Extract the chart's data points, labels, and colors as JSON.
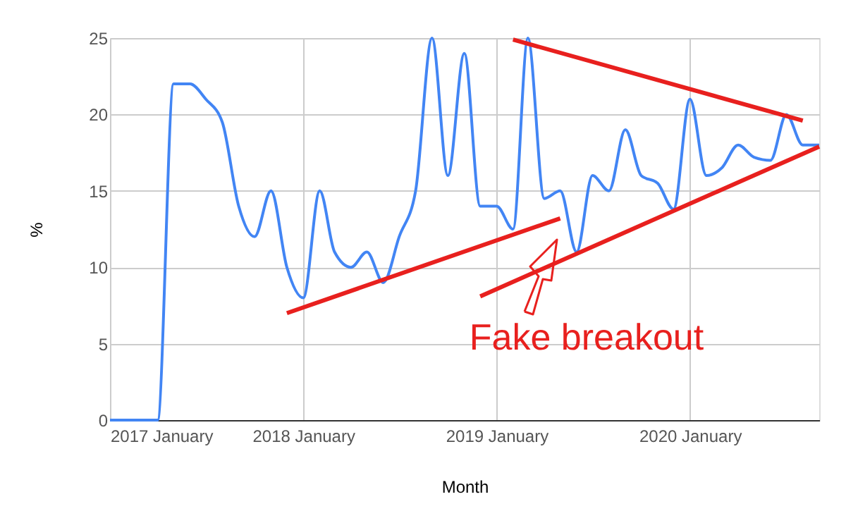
{
  "chart_data": {
    "type": "line",
    "xlabel": "Month",
    "ylabel": "%",
    "x": [
      "2017-01",
      "2017-02",
      "2017-03",
      "2017-04",
      "2017-05",
      "2017-06",
      "2017-07",
      "2017-08",
      "2017-09",
      "2017-10",
      "2017-11",
      "2017-12",
      "2018-01",
      "2018-02",
      "2018-03",
      "2018-04",
      "2018-05",
      "2018-06",
      "2018-07",
      "2018-08",
      "2018-09",
      "2018-10",
      "2018-11",
      "2018-12",
      "2019-01",
      "2019-02",
      "2019-03",
      "2019-04",
      "2019-05",
      "2019-06",
      "2019-07",
      "2019-08",
      "2019-09",
      "2019-10",
      "2019-11",
      "2019-12",
      "2020-01",
      "2020-02",
      "2020-03",
      "2020-04",
      "2020-05",
      "2020-06",
      "2020-07",
      "2020-08",
      "2020-09"
    ],
    "series": [
      {
        "color": "#4285f4",
        "values": [
          0,
          0,
          0,
          0,
          22,
          22,
          21,
          19.5,
          14,
          12,
          15,
          10,
          8,
          15,
          11,
          10,
          11,
          9,
          12,
          15,
          25,
          16,
          24,
          14,
          14,
          12.5,
          25,
          14.5,
          15,
          11,
          16,
          15,
          19,
          16,
          15.5,
          13.8,
          21,
          16,
          16.5,
          18,
          17.2,
          17,
          20,
          18,
          18
        ]
      },
      {
        "color": "#e8201e",
        "type": "line",
        "x": [
          "2017-12",
          "2019-05"
        ],
        "values": [
          7.0,
          13.2
        ]
      },
      {
        "color": "#e8201e",
        "type": "line",
        "x": [
          "2018-12",
          "2020-09"
        ],
        "values": [
          8.1,
          17.9
        ]
      },
      {
        "color": "#e8201e",
        "type": "line",
        "x": [
          "2019-02",
          "2020-08"
        ],
        "values": [
          24.9,
          19.6
        ]
      }
    ],
    "xlim": [
      "2017-01",
      "2020-09"
    ],
    "xticks": [
      {
        "value": "2017-01",
        "label": "2017 January"
      },
      {
        "value": "2018-01",
        "label": "2018 January"
      },
      {
        "value": "2019-01",
        "label": "2019 January"
      },
      {
        "value": "2020-01",
        "label": "2020 January"
      }
    ],
    "ylim": [
      0,
      25
    ],
    "yticks": [
      0,
      5,
      10,
      15,
      20,
      25
    ],
    "grid": true,
    "annotations": [
      "Fake breakout"
    ]
  }
}
